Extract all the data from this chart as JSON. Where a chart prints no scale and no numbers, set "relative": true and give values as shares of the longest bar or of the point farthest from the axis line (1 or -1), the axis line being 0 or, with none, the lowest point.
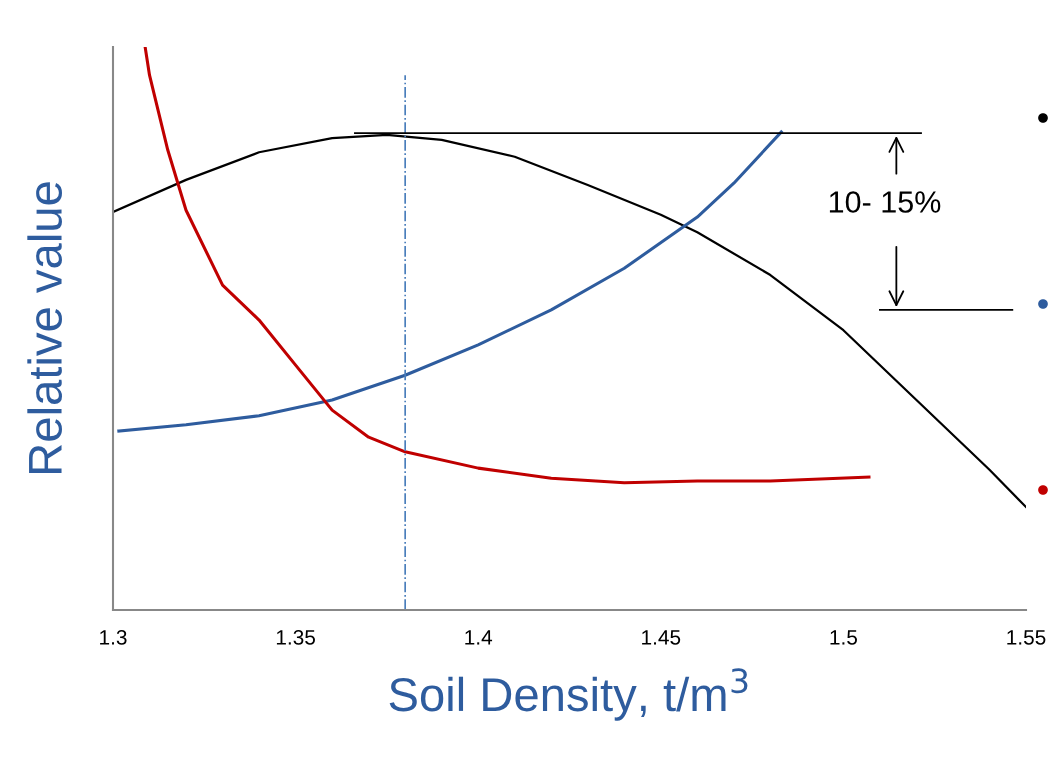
{
  "chart_data": {
    "type": "line",
    "relative": true,
    "xlabel": "Soil Density, t/m$^{3}$",
    "ylabel": "Relative value",
    "xlim": [
      1.3,
      1.55
    ],
    "xticks": [
      1.3,
      1.35,
      1.4,
      1.45,
      1.5,
      1.55
    ],
    "tick_labels": "x",
    "grid": false,
    "marker": "none",
    "line_style": "solid",
    "series": [
      {
        "color": "#000000",
        "x": [
          1.3,
          1.32,
          1.34,
          1.36,
          1.375,
          1.39,
          1.41,
          1.43,
          1.45,
          1.46,
          1.48,
          1.5,
          1.52,
          1.54,
          1.55
        ],
        "values": [
          0.707,
          0.764,
          0.813,
          0.838,
          0.844,
          0.835,
          0.805,
          0.755,
          0.702,
          0.671,
          0.595,
          0.497,
          0.373,
          0.249,
          0.183
        ]
      },
      {
        "color": "#2e5c9e",
        "x": [
          1.3016,
          1.32,
          1.34,
          1.36,
          1.38,
          1.4,
          1.42,
          1.44,
          1.46,
          1.47,
          1.483
        ],
        "values": [
          0.318,
          0.329,
          0.345,
          0.373,
          0.417,
          0.471,
          0.533,
          0.607,
          0.698,
          0.758,
          0.849
        ]
      },
      {
        "color": "#c00000",
        "x": [
          1.3088,
          1.31,
          1.315,
          1.32,
          1.33,
          1.34,
          1.35,
          1.36,
          1.37,
          1.38,
          1.4,
          1.42,
          1.44,
          1.46,
          1.48,
          1.507
        ],
        "values": [
          1.0,
          0.95,
          0.817,
          0.71,
          0.577,
          0.515,
          0.435,
          0.355,
          0.307,
          0.281,
          0.252,
          0.234,
          0.226,
          0.229,
          0.229,
          0.236
        ]
      }
    ],
    "ref_lines": [
      {
        "axis": "x",
        "value": 1.38,
        "color": "#4a7ebb",
        "line_style": "dashdot"
      },
      {
        "axis": "y",
        "value": 0.847,
        "color": "#000000"
      },
      {
        "axis": "y",
        "value": 0.533,
        "color": "#000000"
      }
    ],
    "annotations": [
      "10- 15%"
    ]
  }
}
